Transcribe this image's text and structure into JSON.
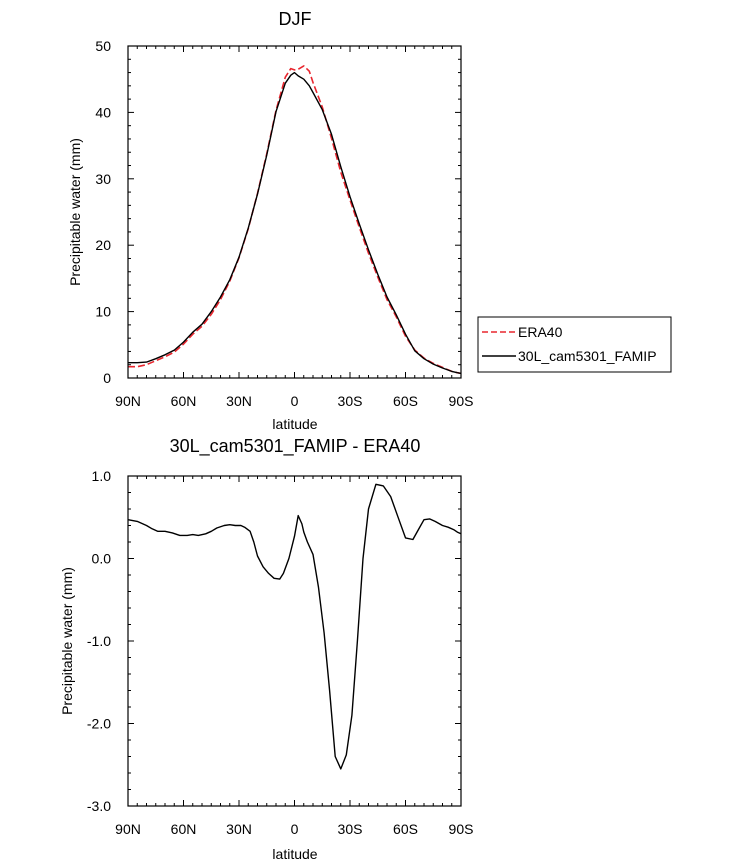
{
  "chart_data": [
    {
      "type": "line",
      "title": "DJF",
      "xlabel": "latitude",
      "ylabel": "Precipitable water (mm)",
      "xlim": [
        90,
        -90
      ],
      "ylim": [
        0,
        50
      ],
      "xticks": [
        90,
        60,
        30,
        0,
        -30,
        -60,
        -90
      ],
      "xtick_labels": [
        "90N",
        "60N",
        "30N",
        "0",
        "30S",
        "60S",
        "90S"
      ],
      "yticks": [
        0,
        10,
        20,
        30,
        40,
        50
      ],
      "ytick_labels": [
        "0",
        "10",
        "20",
        "30",
        "40",
        "50"
      ],
      "grid": false,
      "legend_position": "right",
      "series": [
        {
          "name": "ERA40",
          "color": "#e8262e",
          "dash": "dashed",
          "x": [
            90,
            85,
            80,
            75,
            70,
            65,
            60,
            55,
            50,
            45,
            40,
            35,
            30,
            25,
            20,
            15,
            10,
            5,
            2,
            0,
            -2,
            -5,
            -8,
            -10,
            -15,
            -20,
            -25,
            -30,
            -35,
            -40,
            -45,
            -50,
            -55,
            -60,
            -65,
            -70,
            -75,
            -80,
            -85,
            -88,
            -90
          ],
          "y": [
            1.7,
            1.7,
            2.0,
            2.6,
            3.2,
            3.9,
            5.1,
            6.6,
            7.8,
            9.6,
            11.8,
            14.6,
            18.1,
            22.5,
            27.8,
            33.8,
            40.3,
            45.3,
            46.6,
            46.4,
            46.5,
            47.0,
            46.2,
            44.5,
            40.8,
            36.1,
            31.0,
            26.8,
            22.7,
            18.8,
            15.2,
            11.8,
            9.2,
            6.3,
            4.2,
            3.0,
            2.2,
            1.6,
            1.0,
            0.8,
            0.7
          ]
        },
        {
          "name": "30L_cam5301_FAMIP",
          "color": "#000000",
          "dash": "solid",
          "x": [
            90,
            85,
            80,
            75,
            70,
            65,
            60,
            55,
            50,
            45,
            40,
            35,
            30,
            25,
            20,
            15,
            10,
            5,
            2,
            0,
            -2,
            -5,
            -8,
            -10,
            -15,
            -20,
            -25,
            -30,
            -35,
            -40,
            -45,
            -50,
            -55,
            -60,
            -65,
            -70,
            -75,
            -80,
            -85,
            -88,
            -90
          ],
          "y": [
            2.3,
            2.3,
            2.4,
            2.9,
            3.5,
            4.2,
            5.4,
            6.9,
            8.1,
            10.0,
            12.2,
            14.8,
            18.2,
            22.6,
            27.7,
            33.6,
            40.1,
            44.4,
            45.6,
            46.0,
            45.5,
            45.0,
            44.0,
            43.0,
            40.4,
            36.7,
            31.8,
            27.3,
            23.2,
            19.3,
            15.6,
            12.2,
            9.5,
            6.6,
            4.1,
            2.9,
            2.1,
            1.5,
            1.0,
            0.8,
            0.7
          ]
        }
      ]
    },
    {
      "type": "line",
      "title": "30L_cam5301_FAMIP - ERA40",
      "xlabel": "latitude",
      "ylabel": "Precipitable water (mm)",
      "xlim": [
        90,
        -90
      ],
      "ylim": [
        -3.0,
        1.0
      ],
      "xticks": [
        90,
        60,
        30,
        0,
        -30,
        -60,
        -90
      ],
      "xtick_labels": [
        "90N",
        "60N",
        "30N",
        "0",
        "30S",
        "60S",
        "90S"
      ],
      "yticks": [
        1.0,
        0.0,
        -1.0,
        -2.0,
        -3.0
      ],
      "ytick_labels": [
        "1.0",
        "0.0",
        "-1.0",
        "-2.0",
        "-3.0"
      ],
      "grid": false,
      "series": [
        {
          "color": "#000000",
          "dash": "solid",
          "x": [
            90,
            85,
            80,
            77,
            74,
            70,
            66,
            62,
            58,
            55,
            52,
            48,
            45,
            42,
            38,
            35,
            32,
            29,
            27,
            24,
            22,
            20,
            17,
            14,
            11,
            8,
            6,
            3,
            0,
            -2,
            -4,
            -5,
            -7,
            -10,
            -13,
            -16,
            -19,
            -22,
            -25,
            -28,
            -31,
            -34,
            -37,
            -40,
            -44,
            -48,
            -52,
            -56,
            -60,
            -64,
            -67,
            -70,
            -73,
            -76,
            -80,
            -83,
            -86,
            -88,
            -90
          ],
          "y": [
            0.47,
            0.45,
            0.4,
            0.36,
            0.33,
            0.33,
            0.31,
            0.28,
            0.28,
            0.29,
            0.28,
            0.3,
            0.33,
            0.37,
            0.4,
            0.41,
            0.4,
            0.4,
            0.38,
            0.33,
            0.2,
            0.03,
            -0.1,
            -0.18,
            -0.24,
            -0.25,
            -0.18,
            0.0,
            0.27,
            0.52,
            0.42,
            0.32,
            0.2,
            0.05,
            -0.35,
            -0.9,
            -1.6,
            -2.4,
            -2.55,
            -2.38,
            -1.9,
            -1.0,
            0.0,
            0.6,
            0.9,
            0.88,
            0.75,
            0.5,
            0.25,
            0.23,
            0.35,
            0.47,
            0.48,
            0.45,
            0.4,
            0.38,
            0.35,
            0.32,
            0.3
          ]
        }
      ]
    }
  ],
  "legend": {
    "entries": [
      {
        "label": "ERA40",
        "color": "#e8262e",
        "dash": "dashed"
      },
      {
        "label": "30L_cam5301_FAMIP",
        "color": "#000000",
        "dash": "solid"
      }
    ]
  }
}
